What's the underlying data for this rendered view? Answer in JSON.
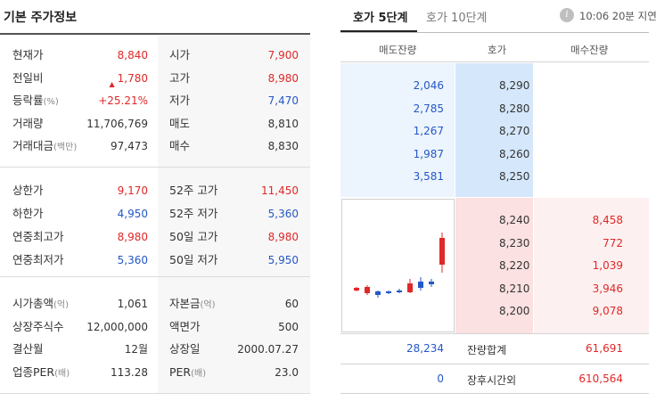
{
  "left": {
    "title": "기본 주가정보",
    "section1": [
      {
        "l1": "현재가",
        "u1": "",
        "v1": "8,840",
        "c1": "red",
        "l2": "시가",
        "u2": "",
        "v2": "7,900",
        "c2": "red"
      },
      {
        "l1": "전일비",
        "u1": "",
        "v1": "1,780",
        "c1": "red",
        "l2": "고가",
        "u2": "",
        "v2": "8,980",
        "c2": "red"
      },
      {
        "l1": "등락률",
        "u1": "(%)",
        "v1": "+25.21%",
        "c1": "red",
        "l2": "저가",
        "u2": "",
        "v2": "7,470",
        "c2": "blue"
      },
      {
        "l1": "거래량",
        "u1": "",
        "v1": "11,706,769",
        "c1": "",
        "l2": "매도",
        "u2": "",
        "v2": "8,810",
        "c2": ""
      },
      {
        "l1": "거래대금",
        "u1": "(백만)",
        "v1": "97,473",
        "c1": "",
        "l2": "매수",
        "u2": "",
        "v2": "8,830",
        "c2": ""
      }
    ],
    "change_arrow": "▲",
    "section2": [
      {
        "l1": "상한가",
        "u1": "",
        "v1": "9,170",
        "c1": "red",
        "l2": "52주 고가",
        "u2": "",
        "v2": "11,450",
        "c2": "red"
      },
      {
        "l1": "하한가",
        "u1": "",
        "v1": "4,950",
        "c1": "blue",
        "l2": "52주 저가",
        "u2": "",
        "v2": "5,360",
        "c2": "blue"
      },
      {
        "l1": "연중최고가",
        "u1": "",
        "v1": "8,980",
        "c1": "red",
        "l2": "50일 고가",
        "u2": "",
        "v2": "8,980",
        "c2": "red"
      },
      {
        "l1": "연중최저가",
        "u1": "",
        "v1": "5,360",
        "c1": "blue",
        "l2": "50일 저가",
        "u2": "",
        "v2": "5,950",
        "c2": "blue"
      }
    ],
    "section3": [
      {
        "l1": "시가총액",
        "u1": "(억)",
        "v1": "1,061",
        "c1": "",
        "l2": "자본금",
        "u2": "(억)",
        "v2": "60",
        "c2": ""
      },
      {
        "l1": "상장주식수",
        "u1": "",
        "v1": "12,000,000",
        "c1": "",
        "l2": "액면가",
        "u2": "",
        "v2": "500",
        "c2": ""
      },
      {
        "l1": "결산월",
        "u1": "",
        "v1": "12월",
        "c1": "",
        "l2": "상장일",
        "u2": "",
        "v2": "2000.07.27",
        "c2": ""
      },
      {
        "l1": "업종PER",
        "u1": "(배)",
        "v1": "113.28",
        "c1": "",
        "l2": "PER",
        "u2": "(배)",
        "v2": "23.0",
        "c2": ""
      }
    ]
  },
  "right": {
    "tab5": "호가 5단계",
    "tab10": "호가 10단계",
    "info_icon": "i",
    "delay": "10:06 20분 지연",
    "headers": {
      "sell": "매도잔량",
      "price": "호가",
      "buy": "매수잔량"
    },
    "sell_orders": [
      {
        "qty": "2,046",
        "price": "8,290"
      },
      {
        "qty": "2,785",
        "price": "8,280"
      },
      {
        "qty": "1,267",
        "price": "8,270"
      },
      {
        "qty": "1,987",
        "price": "8,260"
      },
      {
        "qty": "3,581",
        "price": "8,250"
      }
    ],
    "buy_orders": [
      {
        "price": "8,240",
        "qty": "8,458"
      },
      {
        "price": "8,230",
        "qty": "772"
      },
      {
        "price": "8,220",
        "qty": "1,039"
      },
      {
        "price": "8,210",
        "qty": "3,946"
      },
      {
        "price": "8,200",
        "qty": "9,078"
      }
    ],
    "total": {
      "label": "잔량합계",
      "sell": "28,234",
      "buy": "61,691"
    },
    "after_hours": {
      "label": "장후시간외",
      "sell": "0",
      "buy": "610,564"
    }
  },
  "colors": {
    "up": "#e02828",
    "down": "#2458c6"
  }
}
